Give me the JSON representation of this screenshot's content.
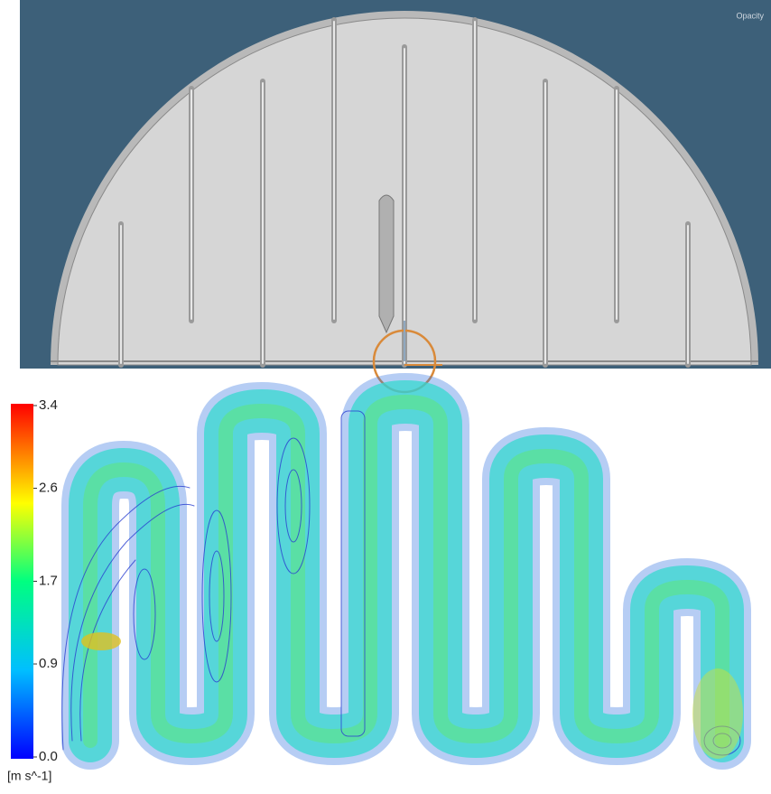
{
  "viewport": {
    "opacity_label": "Opacity"
  },
  "colorbar": {
    "range": [
      0,
      3.4
    ],
    "ticks": [
      {
        "value": 3.4,
        "label": "3.4"
      },
      {
        "value": 2.6,
        "label": "2.6"
      },
      {
        "value": 1.7,
        "label": "1.7"
      },
      {
        "value": 0.9,
        "label": "0.9"
      },
      {
        "value": 0,
        "label": "0.0"
      }
    ],
    "unit": "[m s^-1]"
  }
}
